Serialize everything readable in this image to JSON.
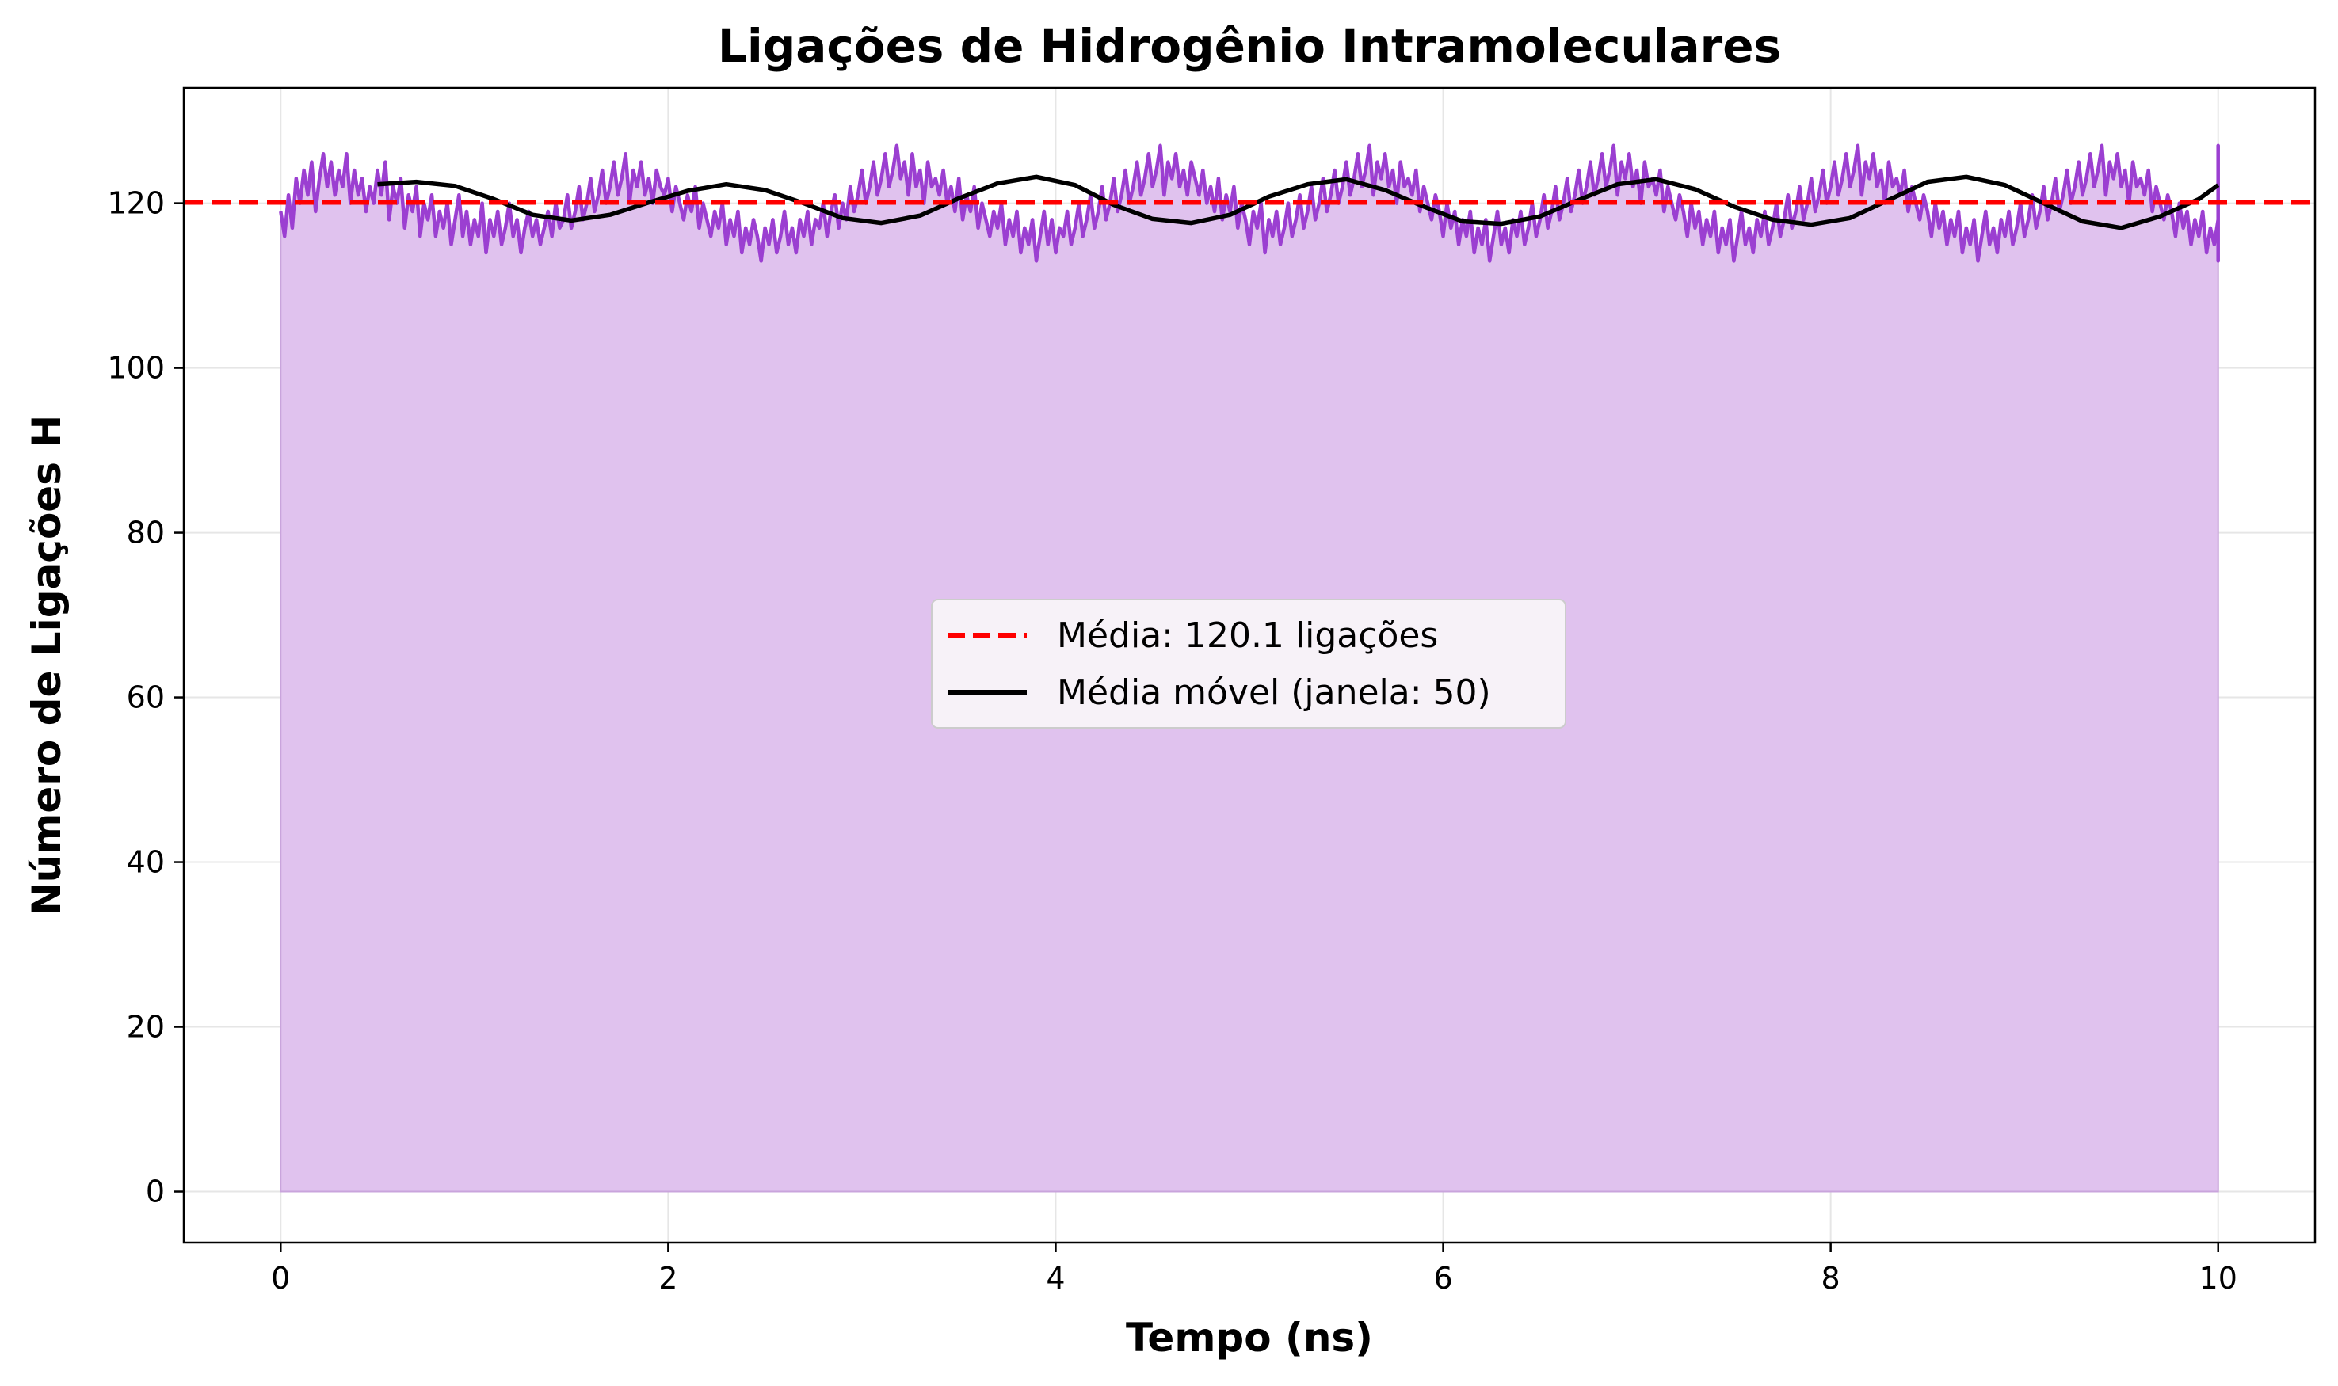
{
  "chart_data": {
    "type": "area",
    "title": "Ligações de Hidrogênio Intramoleculares",
    "xlabel": "Tempo (ns)",
    "ylabel": "Número de Ligações H",
    "xlim": [
      -0.5,
      10.5
    ],
    "ylim": [
      -6.2,
      134
    ],
    "xticks": [
      0,
      2,
      4,
      6,
      8,
      10
    ],
    "yticks": [
      0,
      20,
      40,
      60,
      80,
      100,
      120
    ],
    "grid": true,
    "legend_position": "center",
    "colors": {
      "hbonds": "#9b3fd1",
      "fill": "#e0c2ee",
      "mean": "#ff0000",
      "moving_average": "#000000"
    },
    "mean_value": 120.1,
    "series": [
      {
        "kind": "line-with-fill",
        "x_start": 0,
        "x_end": 10,
        "x_step": 0.02,
        "values": [
          119,
          116,
          121,
          117,
          123,
          120,
          124,
          121,
          125,
          119,
          123,
          126,
          122,
          125,
          121,
          124,
          122,
          126,
          120,
          124,
          121,
          123,
          119,
          122,
          120,
          124,
          121,
          125,
          118,
          122,
          120,
          123,
          117,
          121,
          119,
          122,
          116,
          120,
          118,
          121,
          116,
          119,
          117,
          120,
          115,
          118,
          121,
          116,
          119,
          115,
          118,
          116,
          120,
          114,
          118,
          116,
          119,
          115,
          117,
          120,
          116,
          118,
          114,
          117,
          119,
          116,
          118,
          115,
          117,
          119,
          116,
          120,
          117,
          118,
          121,
          117,
          119,
          122,
          118,
          120,
          123,
          119,
          121,
          124,
          120,
          122,
          125,
          121,
          123,
          126,
          120,
          124,
          122,
          125,
          121,
          123,
          120,
          124,
          122,
          121,
          123,
          119,
          122,
          120,
          118,
          121,
          119,
          122,
          117,
          120,
          118,
          116,
          119,
          117,
          120,
          115,
          118,
          116,
          119,
          114,
          117,
          115,
          118,
          116,
          113,
          117,
          115,
          118,
          114,
          116,
          119,
          115,
          117,
          114,
          118,
          116,
          119,
          115,
          118,
          117,
          120,
          116,
          119,
          121,
          117,
          120,
          118,
          122,
          119,
          121,
          124,
          120,
          122,
          125,
          121,
          123,
          126,
          122,
          124,
          127,
          123,
          125,
          121,
          126,
          122,
          124,
          120,
          125,
          122,
          123,
          121,
          124,
          120,
          122,
          119,
          123,
          118,
          121,
          119,
          122,
          117,
          120,
          118,
          116,
          119,
          117,
          120,
          115,
          118,
          116,
          119,
          114,
          117,
          115,
          118,
          113,
          116,
          119,
          115,
          118,
          114,
          117,
          116,
          119,
          115,
          117,
          120,
          116,
          118,
          121,
          117,
          119,
          122,
          118,
          120,
          123,
          119,
          121,
          124,
          120,
          122,
          125,
          121,
          123,
          126,
          122,
          124,
          127,
          121,
          125,
          123,
          126,
          122,
          124,
          121,
          125,
          123,
          121,
          124,
          120,
          122,
          119,
          123,
          118,
          121,
          119,
          122,
          117,
          120,
          118,
          115,
          119,
          117,
          120,
          114,
          118,
          116,
          119,
          115,
          117,
          120,
          116,
          118,
          121,
          117,
          119,
          122,
          118,
          120,
          123,
          119,
          121,
          124,
          120,
          122,
          125,
          121,
          123,
          126,
          122,
          124,
          127,
          121,
          125,
          123,
          126,
          122,
          124,
          120,
          125,
          122,
          123,
          121,
          124,
          119,
          122,
          120,
          118,
          121,
          119,
          116,
          120,
          117,
          119,
          115,
          118,
          116,
          119,
          114,
          117,
          115,
          118,
          113,
          116,
          119,
          115,
          117,
          114,
          118,
          116,
          119,
          115,
          117,
          120,
          116,
          118,
          121,
          117,
          119,
          122,
          118,
          120,
          123,
          119,
          121,
          124,
          120,
          122,
          125,
          121,
          123,
          126,
          122,
          124,
          127,
          121,
          125,
          123,
          126,
          122,
          124,
          120,
          125,
          122,
          123,
          121,
          124,
          119,
          122,
          120,
          118,
          121,
          119,
          116,
          120,
          117,
          119,
          115,
          118,
          116,
          119,
          114,
          117,
          115,
          118,
          113,
          116,
          119,
          115,
          117,
          114,
          118,
          116,
          119,
          115,
          117,
          120,
          116,
          118,
          121,
          117,
          119,
          122,
          118,
          120,
          123,
          119,
          121,
          124,
          120,
          122,
          125,
          121,
          123,
          126,
          122,
          124,
          127,
          121,
          125,
          123,
          126,
          122,
          124,
          120,
          125,
          122,
          123,
          121,
          124,
          119,
          122,
          120,
          118,
          121,
          119,
          116,
          120,
          117,
          119,
          115,
          118,
          116,
          119,
          114,
          117,
          115,
          118,
          113,
          116,
          119,
          115,
          117,
          114,
          118,
          116,
          119,
          115,
          117,
          120,
          116,
          118,
          121,
          117,
          119,
          122,
          118,
          120,
          123,
          119,
          121,
          124,
          120,
          122,
          125,
          121,
          123,
          126,
          122,
          124,
          127,
          121,
          125,
          123,
          126,
          122,
          124,
          120,
          125,
          122,
          123,
          121,
          124,
          119,
          122,
          120,
          118,
          121,
          119,
          116,
          120,
          117,
          119,
          115,
          118,
          116,
          119,
          114,
          117,
          115,
          118,
          113,
          116,
          119,
          115,
          117,
          114,
          118,
          116,
          119,
          115,
          117,
          120,
          116,
          118,
          121,
          117,
          119,
          122,
          118,
          120,
          123,
          119,
          121,
          124,
          120,
          122,
          125,
          121,
          123,
          126,
          122,
          124,
          127,
          121,
          125,
          123,
          126,
          124,
          121,
          127
        ]
      },
      {
        "name": "Média móvel (janela: 50)",
        "kind": "line",
        "x": [
          0.5,
          0.7,
          0.9,
          1.1,
          1.3,
          1.5,
          1.7,
          1.9,
          2.1,
          2.3,
          2.5,
          2.7,
          2.9,
          3.1,
          3.3,
          3.5,
          3.7,
          3.9,
          4.1,
          4.3,
          4.5,
          4.7,
          4.9,
          5.1,
          5.3,
          5.5,
          5.7,
          5.9,
          6.1,
          6.3,
          6.5,
          6.7,
          6.9,
          7.1,
          7.3,
          7.5,
          7.7,
          7.9,
          8.1,
          8.3,
          8.5,
          8.7,
          8.9,
          9.1,
          9.3,
          9.5,
          9.7,
          9.9,
          10.0
        ],
        "values": [
          122.3,
          122.6,
          122.1,
          120.5,
          118.6,
          117.9,
          118.6,
          120.1,
          121.5,
          122.3,
          121.6,
          120.0,
          118.2,
          117.6,
          118.5,
          120.6,
          122.4,
          123.2,
          122.2,
          119.8,
          118.1,
          117.6,
          118.6,
          120.8,
          122.3,
          122.9,
          121.6,
          119.6,
          117.8,
          117.5,
          118.4,
          120.4,
          122.3,
          122.9,
          121.7,
          119.6,
          118.0,
          117.4,
          118.2,
          120.4,
          122.6,
          123.2,
          122.2,
          120.0,
          117.8,
          117.0,
          118.4,
          120.5,
          122.2
        ]
      },
      {
        "name": "Média: 120.1 ligações",
        "kind": "hline",
        "value": 120.1
      }
    ]
  }
}
